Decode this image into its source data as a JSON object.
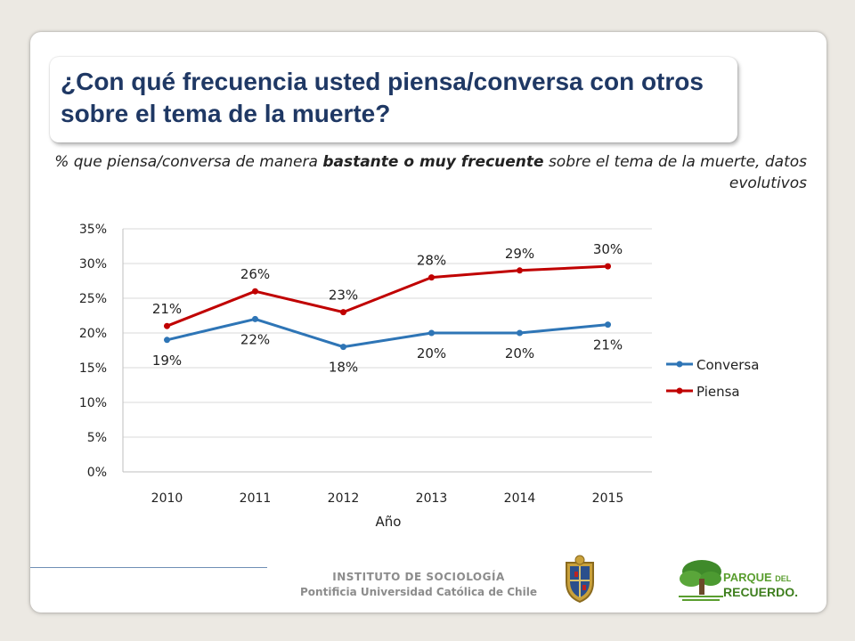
{
  "title": "¿Con qué frecuencia usted piensa/conversa con otros sobre el tema de la muerte?",
  "subtitle": {
    "before": "% que piensa/conversa de manera ",
    "bold": "bastante o muy frecuente",
    "after": " sobre el tema de la muerte, datos evolutivos"
  },
  "chart_data": {
    "type": "line",
    "categories": [
      "2010",
      "2011",
      "2012",
      "2013",
      "2014",
      "2015"
    ],
    "xlabel": "Año",
    "ylabel": "",
    "ylim": [
      0,
      35
    ],
    "y_ticks": [
      "0%",
      "5%",
      "10%",
      "15%",
      "20%",
      "25%",
      "30%",
      "35%"
    ],
    "grid": true,
    "legend_position": "right",
    "series": [
      {
        "name": "Conversa",
        "values": [
          19,
          22,
          18,
          20,
          20,
          21.2
        ],
        "labels": [
          "19%",
          "22%",
          "18%",
          "20%",
          "20%",
          "21%"
        ],
        "label_position": "below",
        "color": "#2e75b6"
      },
      {
        "name": "Piensa",
        "values": [
          21,
          26,
          23,
          28,
          29,
          29.6
        ],
        "labels": [
          "21%",
          "26%",
          "23%",
          "28%",
          "29%",
          "30%"
        ],
        "label_position": "above",
        "color": "#c00000"
      }
    ]
  },
  "footer": {
    "institute": "INSTITUTO DE SOCIOLOGÍA",
    "university": "Pontificia Universidad Católica de Chile",
    "logo_name": "PARQUE",
    "logo_del": "DEL",
    "logo_name2": "RECUERDO."
  }
}
